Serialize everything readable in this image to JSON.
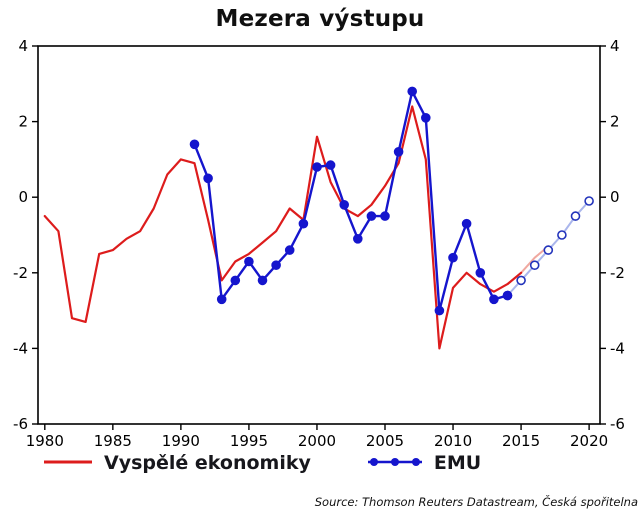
{
  "chart_data": {
    "type": "line",
    "title": "Mezera výstupu",
    "source": "Source: Thomson Reuters Datastream, Česká spořitelna",
    "xlim": [
      1979.5,
      2020.8
    ],
    "ylim": [
      -6,
      4
    ],
    "x_ticks": [
      1980,
      1985,
      1990,
      1995,
      2000,
      2005,
      2010,
      2015,
      2020
    ],
    "y_ticks": [
      4,
      2,
      0,
      -2,
      -4,
      -6
    ],
    "grid": false,
    "legend_position": "bottom",
    "legend": [
      {
        "label": "Vyspělé ekonomiky",
        "color": "#dd1c1c"
      },
      {
        "label": "EMU",
        "color": "#1515cd"
      }
    ],
    "series": [
      {
        "name": "Vyspělé ekonomiky (forecast)",
        "color": "#f0a8a0",
        "width": 2,
        "x": [
          2015,
          2016,
          2017
        ],
        "y": [
          -2.0,
          -1.6,
          -1.3
        ]
      },
      {
        "name": "EMU (forecast)",
        "color": "#aab6ec",
        "width": 2,
        "marker": "open",
        "marker_color": "#2233bb",
        "x": [
          2014,
          2015,
          2016,
          2017,
          2018,
          2019,
          2020
        ],
        "y": [
          -2.6,
          -2.2,
          -1.8,
          -1.4,
          -1.0,
          -0.5,
          -0.1
        ]
      },
      {
        "name": "Vyspělé ekonomiky",
        "color": "#dd1c1c",
        "width": 2.2,
        "x": [
          1980,
          1981,
          1982,
          1983,
          1984,
          1985,
          1986,
          1987,
          1988,
          1989,
          1990,
          1991,
          1992,
          1993,
          1994,
          1995,
          1996,
          1997,
          1998,
          1999,
          2000,
          2001,
          2002,
          2003,
          2004,
          2005,
          2006,
          2007,
          2008,
          2009,
          2010,
          2011,
          2012,
          2013,
          2014,
          2015
        ],
        "y": [
          -0.5,
          -0.9,
          -3.2,
          -3.3,
          -1.5,
          -1.4,
          -1.1,
          -0.9,
          -0.3,
          0.6,
          1.0,
          0.9,
          -0.6,
          -2.2,
          -1.7,
          -1.5,
          -1.2,
          -0.9,
          -0.3,
          -0.6,
          1.6,
          0.4,
          -0.3,
          -0.5,
          -0.2,
          0.3,
          0.9,
          2.4,
          1.0,
          -4.0,
          -2.4,
          -2.0,
          -2.3,
          -2.5,
          -2.3,
          -2.0
        ]
      },
      {
        "name": "EMU",
        "color": "#1515cd",
        "width": 2.4,
        "marker": "filled",
        "x": [
          1991,
          1992,
          1993,
          1994,
          1995,
          1996,
          1997,
          1998,
          1999,
          2000,
          2001,
          2002,
          2003,
          2004,
          2005,
          2006,
          2007,
          2008,
          2009,
          2010,
          2011,
          2012,
          2013,
          2014
        ],
        "y": [
          1.4,
          0.5,
          -2.7,
          -2.2,
          -1.7,
          -2.2,
          -1.8,
          -1.4,
          -0.7,
          0.8,
          0.85,
          -0.2,
          -1.1,
          -0.5,
          -0.5,
          1.2,
          2.8,
          2.1,
          -3.0,
          -1.6,
          -0.7,
          -2.0,
          -2.7,
          -2.6
        ]
      }
    ]
  }
}
